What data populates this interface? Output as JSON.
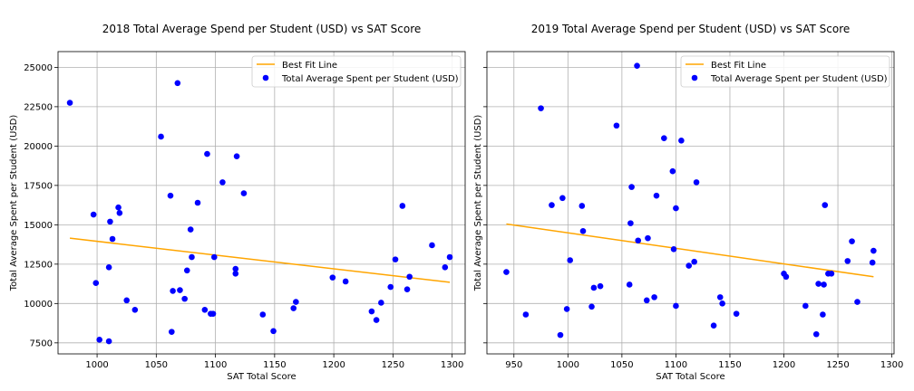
{
  "chart_data": [
    {
      "type": "scatter",
      "title": "2018 Total Average Spend per Student (USD) vs SAT Score",
      "xlabel": "SAT Total Score",
      "ylabel": "Total Average Spent per Student (USD)",
      "xlim": [
        967,
        1311
      ],
      "ylim": [
        6800,
        26000
      ],
      "xticks": [
        1000,
        1050,
        1100,
        1150,
        1200,
        1250,
        1300
      ],
      "yticks": [
        7500,
        10000,
        12500,
        15000,
        17500,
        20000,
        22500,
        25000
      ],
      "grid": true,
      "legend_position": "top-right",
      "colors": {
        "points": "#0000ff",
        "fit": "#ffa500"
      },
      "series": [
        {
          "name": "Total Average Spent per Student (USD)",
          "kind": "scatter",
          "points": [
            [
              977,
              22750
            ],
            [
              997,
              15650
            ],
            [
              999,
              11300
            ],
            [
              1002,
              7700
            ],
            [
              1010,
              7600
            ],
            [
              1010,
              12300
            ],
            [
              1011,
              15200
            ],
            [
              1013,
              14100
            ],
            [
              1018,
              16100
            ],
            [
              1019,
              15750
            ],
            [
              1025,
              10200
            ],
            [
              1032,
              9600
            ],
            [
              1054,
              20600
            ],
            [
              1062,
              16850
            ],
            [
              1063,
              8200
            ],
            [
              1064,
              10800
            ],
            [
              1068,
              24000
            ],
            [
              1070,
              10850
            ],
            [
              1074,
              10300
            ],
            [
              1076,
              12100
            ],
            [
              1079,
              14700
            ],
            [
              1080,
              12950
            ],
            [
              1085,
              16400
            ],
            [
              1091,
              9600
            ],
            [
              1093,
              19500
            ],
            [
              1096,
              9350
            ],
            [
              1098,
              9350
            ],
            [
              1099,
              12950
            ],
            [
              1106,
              17700
            ],
            [
              1117,
              11900
            ],
            [
              1117,
              12200
            ],
            [
              1118,
              19350
            ],
            [
              1124,
              17000
            ],
            [
              1140,
              9300
            ],
            [
              1149,
              8250
            ],
            [
              1166,
              9700
            ],
            [
              1168,
              10100
            ],
            [
              1199,
              11650
            ],
            [
              1210,
              11400
            ],
            [
              1232,
              9500
            ],
            [
              1236,
              8950
            ],
            [
              1240,
              10050
            ],
            [
              1248,
              11050
            ],
            [
              1252,
              12800
            ],
            [
              1258,
              16200
            ],
            [
              1262,
              10900
            ],
            [
              1264,
              11700
            ],
            [
              1283,
              13700
            ],
            [
              1294,
              12300
            ],
            [
              1298,
              12950
            ]
          ]
        },
        {
          "name": "Best Fit Line",
          "kind": "line",
          "points": [
            [
              977,
              14150
            ],
            [
              1298,
              11350
            ]
          ]
        }
      ]
    },
    {
      "type": "scatter",
      "title": "2019 Total Average Spend per Student (USD) vs SAT Score",
      "xlabel": "SAT Total Score",
      "ylabel": "Total Average Spent per Student (USD)",
      "xlim": [
        925,
        1302
      ],
      "ylim": [
        6800,
        26000
      ],
      "xticks": [
        950,
        1000,
        1050,
        1100,
        1150,
        1200,
        1250,
        1300
      ],
      "yticks": [
        7500,
        10000,
        12500,
        15000,
        17500,
        20000,
        22500,
        25000
      ],
      "grid": true,
      "legend_position": "top-right",
      "colors": {
        "points": "#0000ff",
        "fit": "#ffa500"
      },
      "series": [
        {
          "name": "Total Average Spent per Student (USD)",
          "kind": "scatter",
          "points": [
            [
              943,
              12000
            ],
            [
              961,
              9300
            ],
            [
              975,
              22400
            ],
            [
              985,
              16250
            ],
            [
              993,
              8000
            ],
            [
              995,
              16700
            ],
            [
              999,
              9650
            ],
            [
              1002,
              12750
            ],
            [
              1013,
              16200
            ],
            [
              1014,
              14600
            ],
            [
              1022,
              9800
            ],
            [
              1024,
              11000
            ],
            [
              1030,
              11100
            ],
            [
              1045,
              21300
            ],
            [
              1057,
              11200
            ],
            [
              1058,
              15100
            ],
            [
              1059,
              17400
            ],
            [
              1064,
              25100
            ],
            [
              1065,
              14000
            ],
            [
              1073,
              10200
            ],
            [
              1074,
              14150
            ],
            [
              1080,
              10400
            ],
            [
              1082,
              16850
            ],
            [
              1089,
              20500
            ],
            [
              1097,
              18400
            ],
            [
              1098,
              13450
            ],
            [
              1100,
              16050
            ],
            [
              1100,
              9850
            ],
            [
              1105,
              20350
            ],
            [
              1112,
              12400
            ],
            [
              1117,
              12650
            ],
            [
              1119,
              17700
            ],
            [
              1135,
              8600
            ],
            [
              1141,
              10400
            ],
            [
              1143,
              10000
            ],
            [
              1156,
              9350
            ],
            [
              1200,
              11900
            ],
            [
              1202,
              11700
            ],
            [
              1220,
              9850
            ],
            [
              1230,
              8050
            ],
            [
              1232,
              11250
            ],
            [
              1236,
              9300
            ],
            [
              1237,
              11200
            ],
            [
              1238,
              16250
            ],
            [
              1241,
              11900
            ],
            [
              1244,
              11900
            ],
            [
              1259,
              12700
            ],
            [
              1263,
              13950
            ],
            [
              1268,
              10100
            ],
            [
              1282,
              12600
            ],
            [
              1283,
              13350
            ]
          ]
        },
        {
          "name": "Best Fit Line",
          "kind": "line",
          "points": [
            [
              943,
              15050
            ],
            [
              1283,
              11700
            ]
          ]
        }
      ]
    }
  ]
}
